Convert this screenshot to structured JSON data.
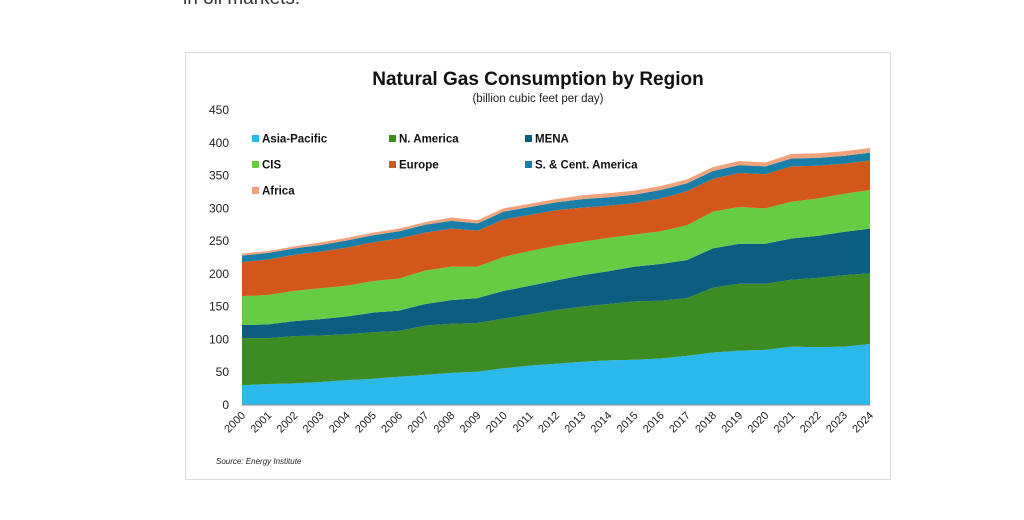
{
  "page": {
    "intro_text": "in oil markets."
  },
  "chart_data": {
    "type": "area",
    "title": "Natural Gas Consumption by Region",
    "subtitle": "(billion cubic feet per day)",
    "source": "Source: Energy Institute",
    "ylim": [
      0,
      450
    ],
    "yticks": [
      0,
      50,
      100,
      150,
      200,
      250,
      300,
      350,
      400,
      450
    ],
    "grid": false,
    "legend_position": "top-left",
    "x": [
      "2000",
      "2001",
      "2002",
      "2003",
      "2004",
      "2005",
      "2006",
      "2007",
      "2008",
      "2009",
      "2010",
      "2011",
      "2012",
      "2013",
      "2014",
      "2015",
      "2016",
      "2017",
      "2018",
      "2019",
      "2020",
      "2021",
      "2022",
      "2023",
      "2024"
    ],
    "stacked": true,
    "series": [
      {
        "name": "Asia-Pacific",
        "color": "#2bb8ea",
        "values": [
          30,
          32,
          33,
          35,
          38,
          40,
          43,
          46,
          49,
          51,
          56,
          60,
          63,
          66,
          68,
          69,
          71,
          75,
          80,
          83,
          84,
          89,
          88,
          89,
          93
        ]
      },
      {
        "name": "N. America",
        "color": "#3c8c23",
        "values": [
          72,
          70,
          72,
          71,
          70,
          71,
          70,
          75,
          75,
          74,
          76,
          78,
          82,
          84,
          86,
          89,
          88,
          88,
          99,
          102,
          101,
          102,
          106,
          109,
          108
        ]
      },
      {
        "name": "MENA",
        "color": "#0b5e7f",
        "values": [
          20,
          21,
          23,
          25,
          27,
          30,
          31,
          33,
          36,
          38,
          42,
          44,
          45,
          48,
          50,
          53,
          56,
          58,
          60,
          61,
          61,
          63,
          64,
          66,
          68
        ]
      },
      {
        "name": "CIS",
        "color": "#66cc44",
        "values": [
          44,
          45,
          46,
          47,
          47,
          48,
          49,
          51,
          51,
          48,
          52,
          53,
          53,
          51,
          51,
          49,
          50,
          53,
          56,
          56,
          54,
          56,
          57,
          58,
          59
        ]
      },
      {
        "name": "Europe",
        "color": "#d2571a",
        "values": [
          52,
          54,
          55,
          56,
          58,
          59,
          61,
          58,
          58,
          55,
          57,
          55,
          54,
          52,
          49,
          48,
          50,
          52,
          50,
          52,
          52,
          54,
          50,
          46,
          45
        ]
      },
      {
        "name": "S. & Cent. America",
        "color": "#1a7fa8",
        "values": [
          10,
          10,
          10,
          10,
          11,
          11,
          11,
          12,
          12,
          11,
          12,
          12,
          12,
          13,
          13,
          13,
          13,
          12,
          12,
          12,
          12,
          12,
          12,
          12,
          12
        ]
      },
      {
        "name": "Africa",
        "color": "#f2a27a",
        "values": [
          3,
          3,
          3,
          4,
          4,
          4,
          4,
          4,
          5,
          5,
          5,
          5,
          5,
          6,
          6,
          6,
          6,
          6,
          6,
          6,
          6,
          7,
          7,
          7,
          7
        ]
      }
    ]
  }
}
